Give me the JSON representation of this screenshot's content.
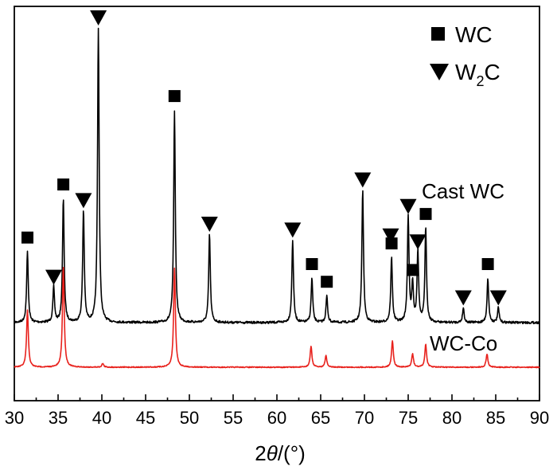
{
  "chart_data": {
    "type": "line",
    "xlabel_prefix": "2",
    "xlabel_symbol": "θ",
    "xlabel_unit": "/(°)",
    "xlim": [
      30,
      90
    ],
    "xticks": [
      "30",
      "35",
      "40",
      "45",
      "50",
      "55",
      "60",
      "65",
      "70",
      "75",
      "80",
      "85",
      "90"
    ],
    "grid": false,
    "legend_position": "top-right",
    "legend": [
      {
        "marker": "square",
        "label": "WC",
        "sub": ""
      },
      {
        "marker": "triangle-down",
        "label": "W",
        "sub": "2",
        "suffix": "C"
      }
    ],
    "series": [
      {
        "name": "Cast WC",
        "color": "#000000",
        "baseline": 0.0,
        "peaks": [
          [
            31.5,
            0.24
          ],
          [
            34.5,
            0.12
          ],
          [
            35.6,
            0.42
          ],
          [
            37.9,
            0.38
          ],
          [
            39.6,
            1.0
          ],
          [
            48.3,
            0.72
          ],
          [
            52.3,
            0.3
          ],
          [
            61.8,
            0.28
          ],
          [
            64.0,
            0.15
          ],
          [
            65.7,
            0.09
          ],
          [
            69.8,
            0.45
          ],
          [
            73.1,
            0.22
          ],
          [
            75.0,
            0.36
          ],
          [
            75.5,
            0.13
          ],
          [
            76.1,
            0.24
          ],
          [
            77.0,
            0.32
          ],
          [
            81.3,
            0.05
          ],
          [
            84.1,
            0.15
          ],
          [
            85.3,
            0.05
          ]
        ]
      },
      {
        "name": "WC-Co",
        "color": "#e8211c",
        "baseline": 0.0,
        "peaks": [
          [
            31.5,
            0.3
          ],
          [
            35.6,
            0.53
          ],
          [
            40.1,
            0.02
          ],
          [
            48.3,
            0.52
          ],
          [
            63.9,
            0.11
          ],
          [
            65.6,
            0.06
          ],
          [
            73.2,
            0.14
          ],
          [
            75.5,
            0.07
          ],
          [
            77.0,
            0.12
          ],
          [
            84.0,
            0.07
          ]
        ]
      }
    ],
    "markers": [
      {
        "type": "square",
        "x": 31.5,
        "series": "Cast WC"
      },
      {
        "type": "triangle-down",
        "x": 34.5,
        "series": "Cast WC"
      },
      {
        "type": "square",
        "x": 35.6,
        "series": "Cast WC"
      },
      {
        "type": "triangle-down",
        "x": 37.9,
        "series": "Cast WC"
      },
      {
        "type": "triangle-down",
        "x": 39.6,
        "series": "Cast WC"
      },
      {
        "type": "square",
        "x": 48.3,
        "series": "Cast WC"
      },
      {
        "type": "triangle-down",
        "x": 52.3,
        "series": "Cast WC"
      },
      {
        "type": "triangle-down",
        "x": 61.8,
        "series": "Cast WC"
      },
      {
        "type": "square",
        "x": 64.0,
        "series": "Cast WC"
      },
      {
        "type": "square",
        "x": 65.7,
        "series": "Cast WC"
      },
      {
        "type": "triangle-down",
        "x": 69.8,
        "series": "Cast WC"
      },
      {
        "type": "triangle-down",
        "x": 73.0,
        "series": "Cast WC",
        "level": 0.26
      },
      {
        "type": "square",
        "x": 73.1,
        "series": "Cast WC"
      },
      {
        "type": "triangle-down",
        "x": 75.0,
        "series": "Cast WC"
      },
      {
        "type": "square",
        "x": 75.5,
        "series": "Cast WC"
      },
      {
        "type": "triangle-down",
        "x": 76.1,
        "series": "Cast WC"
      },
      {
        "type": "square",
        "x": 77.0,
        "series": "Cast WC"
      },
      {
        "type": "triangle-down",
        "x": 81.3,
        "series": "Cast WC"
      },
      {
        "type": "square",
        "x": 84.1,
        "series": "Cast WC"
      },
      {
        "type": "triangle-down",
        "x": 85.3,
        "series": "Cast WC"
      }
    ]
  }
}
